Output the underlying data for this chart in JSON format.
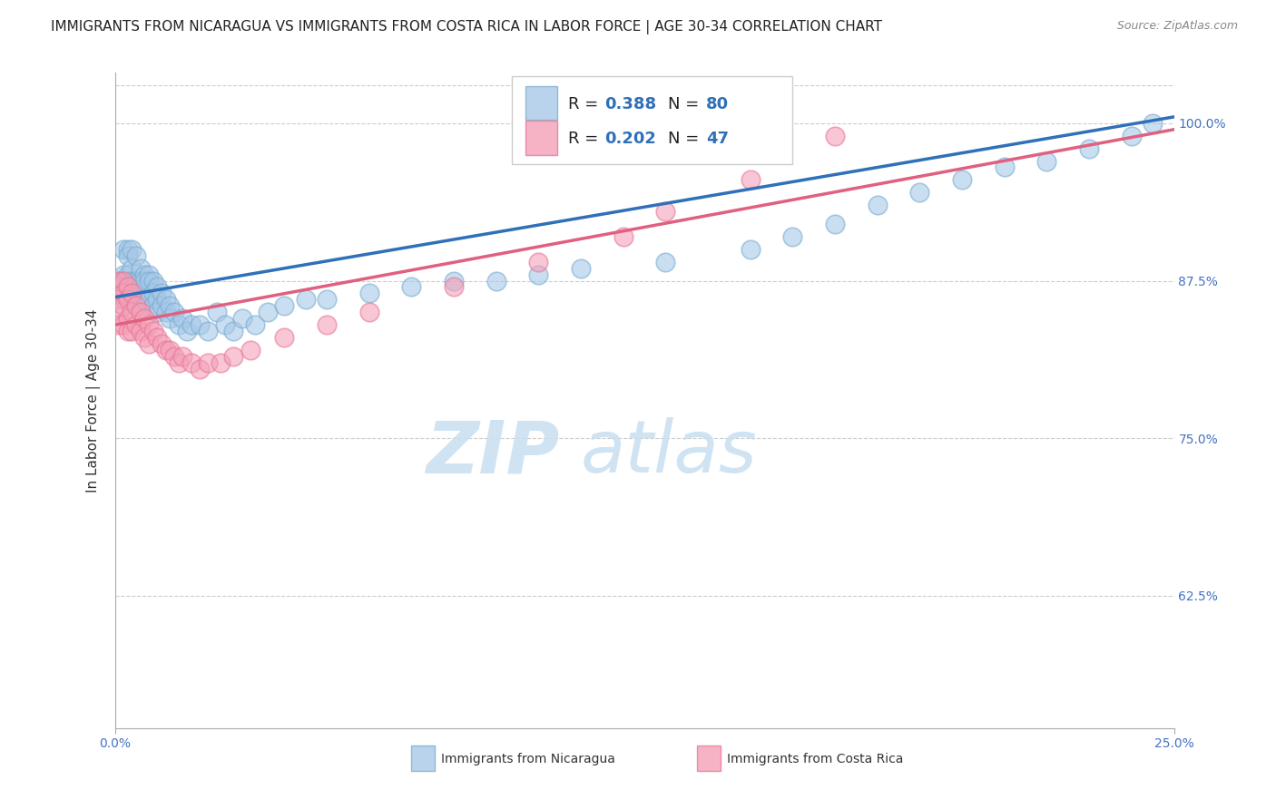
{
  "title": "IMMIGRANTS FROM NICARAGUA VS IMMIGRANTS FROM COSTA RICA IN LABOR FORCE | AGE 30-34 CORRELATION CHART",
  "source": "Source: ZipAtlas.com",
  "ylabel": "In Labor Force | Age 30-34",
  "yticks": [
    "62.5%",
    "75.0%",
    "87.5%",
    "100.0%"
  ],
  "ytick_vals": [
    0.625,
    0.75,
    0.875,
    1.0
  ],
  "xlim": [
    0.0,
    0.25
  ],
  "ylim": [
    0.52,
    1.04
  ],
  "label_blue": "Immigrants from Nicaragua",
  "label_pink": "Immigrants from Costa Rica",
  "blue_color": "#a8c8e8",
  "pink_color": "#f4a0b8",
  "blue_edge_color": "#7aaed0",
  "pink_edge_color": "#e87898",
  "blue_line_color": "#3070b8",
  "pink_line_color": "#e06080",
  "blue_scatter_x": [
    0.001,
    0.001,
    0.001,
    0.001,
    0.002,
    0.002,
    0.002,
    0.002,
    0.002,
    0.003,
    0.003,
    0.003,
    0.003,
    0.003,
    0.004,
    0.004,
    0.004,
    0.004,
    0.004,
    0.005,
    0.005,
    0.005,
    0.005,
    0.006,
    0.006,
    0.006,
    0.006,
    0.007,
    0.007,
    0.007,
    0.007,
    0.008,
    0.008,
    0.008,
    0.009,
    0.009,
    0.009,
    0.01,
    0.01,
    0.01,
    0.011,
    0.011,
    0.012,
    0.012,
    0.013,
    0.013,
    0.014,
    0.015,
    0.016,
    0.017,
    0.018,
    0.02,
    0.022,
    0.024,
    0.026,
    0.028,
    0.03,
    0.033,
    0.036,
    0.04,
    0.045,
    0.05,
    0.06,
    0.07,
    0.08,
    0.09,
    0.1,
    0.11,
    0.13,
    0.15,
    0.16,
    0.17,
    0.18,
    0.19,
    0.2,
    0.21,
    0.22,
    0.23,
    0.24,
    0.245
  ],
  "blue_scatter_y": [
    0.875,
    0.875,
    0.875,
    0.875,
    0.9,
    0.88,
    0.875,
    0.86,
    0.875,
    0.9,
    0.895,
    0.88,
    0.87,
    0.875,
    0.9,
    0.885,
    0.87,
    0.875,
    0.86,
    0.895,
    0.875,
    0.86,
    0.875,
    0.885,
    0.87,
    0.875,
    0.855,
    0.88,
    0.87,
    0.875,
    0.86,
    0.88,
    0.875,
    0.86,
    0.875,
    0.865,
    0.855,
    0.87,
    0.86,
    0.85,
    0.865,
    0.855,
    0.86,
    0.85,
    0.855,
    0.845,
    0.85,
    0.84,
    0.845,
    0.835,
    0.84,
    0.84,
    0.835,
    0.85,
    0.84,
    0.835,
    0.845,
    0.84,
    0.85,
    0.855,
    0.86,
    0.86,
    0.865,
    0.87,
    0.875,
    0.875,
    0.88,
    0.885,
    0.89,
    0.9,
    0.91,
    0.92,
    0.935,
    0.945,
    0.955,
    0.965,
    0.97,
    0.98,
    0.99,
    1.0
  ],
  "pink_scatter_x": [
    0.001,
    0.001,
    0.001,
    0.001,
    0.001,
    0.002,
    0.002,
    0.002,
    0.002,
    0.003,
    0.003,
    0.003,
    0.003,
    0.004,
    0.004,
    0.004,
    0.005,
    0.005,
    0.006,
    0.006,
    0.007,
    0.007,
    0.008,
    0.008,
    0.009,
    0.01,
    0.011,
    0.012,
    0.013,
    0.014,
    0.015,
    0.016,
    0.018,
    0.02,
    0.022,
    0.025,
    0.028,
    0.032,
    0.04,
    0.05,
    0.06,
    0.08,
    0.1,
    0.12,
    0.13,
    0.15,
    0.17
  ],
  "pink_scatter_y": [
    0.875,
    0.87,
    0.86,
    0.85,
    0.84,
    0.875,
    0.865,
    0.855,
    0.84,
    0.87,
    0.86,
    0.845,
    0.835,
    0.865,
    0.85,
    0.835,
    0.855,
    0.84,
    0.85,
    0.835,
    0.845,
    0.83,
    0.84,
    0.825,
    0.835,
    0.83,
    0.825,
    0.82,
    0.82,
    0.815,
    0.81,
    0.815,
    0.81,
    0.805,
    0.81,
    0.81,
    0.815,
    0.82,
    0.83,
    0.84,
    0.85,
    0.87,
    0.89,
    0.91,
    0.93,
    0.955,
    0.99
  ],
  "blue_line_x0": 0.0,
  "blue_line_y0": 0.862,
  "blue_line_x1": 0.25,
  "blue_line_y1": 1.005,
  "pink_line_x0": 0.0,
  "pink_line_y0": 0.84,
  "pink_line_x1": 0.25,
  "pink_line_y1": 0.995,
  "bg_color": "#ffffff",
  "title_fontsize": 11,
  "axis_label_fontsize": 11,
  "tick_fontsize": 10,
  "legend_r_blue": "0.388",
  "legend_n_blue": "80",
  "legend_r_pink": "0.202",
  "legend_n_pink": "47"
}
